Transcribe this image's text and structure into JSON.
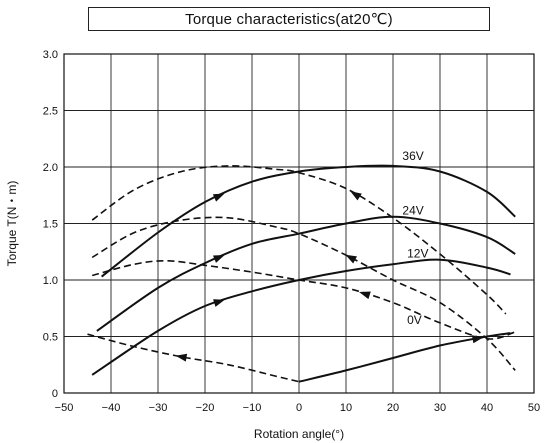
{
  "chart_data": {
    "type": "line",
    "title": "Torque characteristics(at20℃)",
    "xlabel": "Rotation angle(°)",
    "ylabel": "Torque T(N・m)",
    "xlim": [
      -50,
      50
    ],
    "ylim": [
      0,
      3.0
    ],
    "xticks": [
      "−50",
      "−40",
      "−30",
      "−20",
      "−10",
      "0",
      "10",
      "20",
      "30",
      "40",
      "50"
    ],
    "yticks": [
      "0",
      "0.5",
      "1.0",
      "1.5",
      "2.0",
      "2.5",
      "3.0"
    ],
    "grid": true,
    "series": [
      {
        "name": "36V",
        "label_at": [
          22,
          2.06
        ],
        "style": "solid",
        "points": [
          [
            -42,
            1.03
          ],
          [
            -30,
            1.42
          ],
          [
            -20,
            1.69
          ],
          [
            -10,
            1.87
          ],
          [
            0,
            1.96
          ],
          [
            10,
            2.0
          ],
          [
            20,
            2.01
          ],
          [
            30,
            1.96
          ],
          [
            40,
            1.78
          ],
          [
            46,
            1.56
          ]
        ],
        "arrows": [
          [
            -17,
            1.75,
            1
          ]
        ]
      },
      {
        "name": "",
        "style": "dashed",
        "points": [
          [
            -44,
            1.53
          ],
          [
            -35,
            1.8
          ],
          [
            -25,
            1.96
          ],
          [
            -15,
            2.01
          ],
          [
            -5,
            1.98
          ],
          [
            0,
            1.95
          ],
          [
            10,
            1.81
          ],
          [
            20,
            1.55
          ],
          [
            30,
            1.23
          ],
          [
            40,
            0.87
          ],
          [
            44,
            0.7
          ]
        ],
        "arrows": [
          [
            12,
            1.77,
            -1
          ]
        ]
      },
      {
        "name": "24V",
        "label_at": [
          22,
          1.58
        ],
        "style": "solid",
        "points": [
          [
            -43,
            0.55
          ],
          [
            -30,
            0.93
          ],
          [
            -20,
            1.15
          ],
          [
            -10,
            1.32
          ],
          [
            0,
            1.41
          ],
          [
            10,
            1.5
          ],
          [
            20,
            1.56
          ],
          [
            30,
            1.5
          ],
          [
            40,
            1.38
          ],
          [
            46,
            1.23
          ]
        ],
        "arrows": [
          [
            -17,
            1.28,
            1
          ]
        ]
      },
      {
        "name": "",
        "style": "dashed",
        "points": [
          [
            -44,
            1.2
          ],
          [
            -35,
            1.42
          ],
          [
            -25,
            1.53
          ],
          [
            -15,
            1.55
          ],
          [
            -5,
            1.47
          ],
          [
            0,
            1.41
          ],
          [
            10,
            1.22
          ],
          [
            20,
            1.0
          ],
          [
            30,
            0.8
          ],
          [
            40,
            0.48
          ],
          [
            46,
            0.2
          ]
        ],
        "arrows": [
          [
            11,
            1.33,
            -1
          ]
        ]
      },
      {
        "name": "12V",
        "label_at": [
          23,
          1.2
        ],
        "style": "solid",
        "points": [
          [
            -44,
            0.16
          ],
          [
            -30,
            0.55
          ],
          [
            -20,
            0.77
          ],
          [
            -10,
            0.9
          ],
          [
            0,
            1.0
          ],
          [
            10,
            1.08
          ],
          [
            20,
            1.14
          ],
          [
            30,
            1.18
          ],
          [
            40,
            1.11
          ],
          [
            45,
            1.05
          ]
        ],
        "arrows": [
          [
            -17,
            0.91,
            1
          ]
        ]
      },
      {
        "name": "",
        "style": "dashed",
        "points": [
          [
            -44,
            1.04
          ],
          [
            -35,
            1.14
          ],
          [
            -28,
            1.17
          ],
          [
            -20,
            1.13
          ],
          [
            -10,
            1.07
          ],
          [
            0,
            1.0
          ],
          [
            10,
            0.93
          ],
          [
            20,
            0.8
          ],
          [
            30,
            0.62
          ],
          [
            40,
            0.48
          ],
          [
            46,
            0.54
          ]
        ],
        "arrows": [
          [
            14,
            0.93,
            -1
          ]
        ]
      },
      {
        "name": "0V",
        "label_at": [
          23,
          0.61
        ],
        "style": "solid",
        "points": [
          [
            0,
            0.1
          ],
          [
            10,
            0.2
          ],
          [
            20,
            0.31
          ],
          [
            30,
            0.42
          ],
          [
            40,
            0.5
          ],
          [
            45,
            0.53
          ]
        ],
        "arrows": [
          [
            38,
            0.49,
            1
          ]
        ]
      },
      {
        "name": "",
        "style": "dashed",
        "points": [
          [
            -45,
            0.52
          ],
          [
            -35,
            0.41
          ],
          [
            -25,
            0.32
          ],
          [
            -15,
            0.25
          ],
          [
            -5,
            0.15
          ],
          [
            0,
            0.1
          ]
        ],
        "arrows": [
          [
            -25,
            0.32,
            -1
          ]
        ]
      }
    ]
  }
}
